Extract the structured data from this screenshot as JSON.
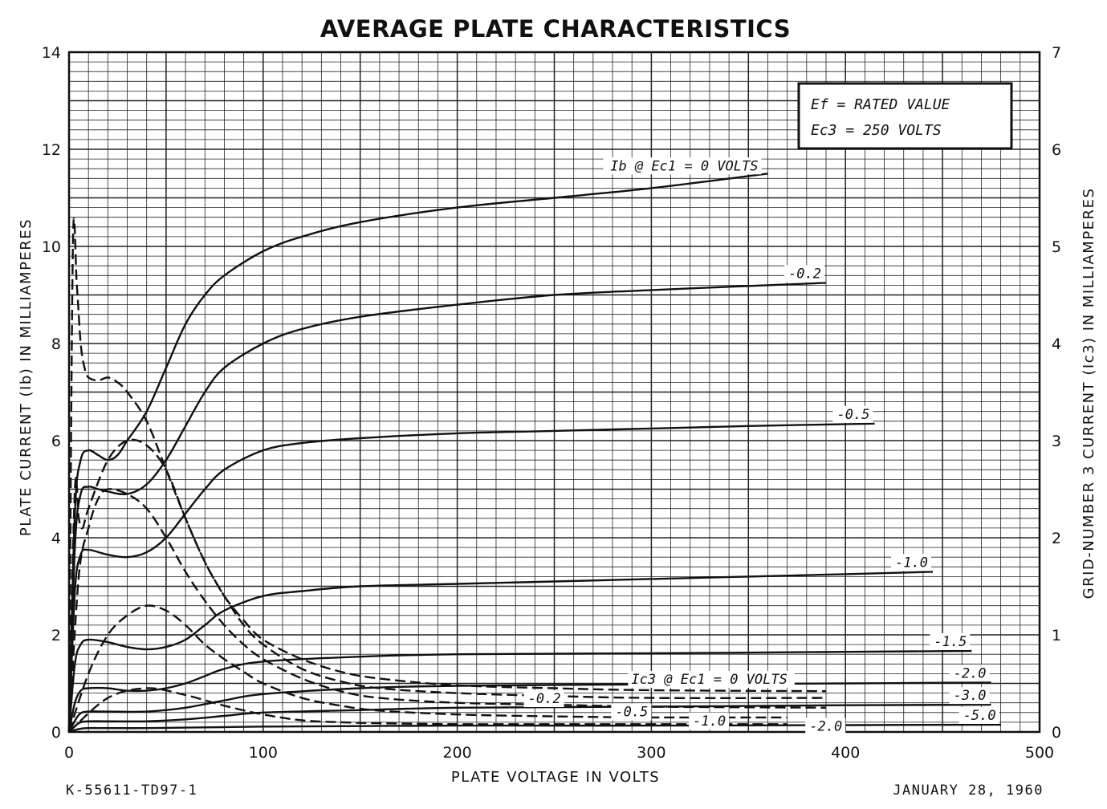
{
  "chart_data": {
    "type": "line",
    "title": "AVERAGE PLATE CHARACTERISTICS",
    "xlabel": "PLATE VOLTAGE IN VOLTS",
    "ylabel_left": "PLATE CURRENT (Ib) IN MILLIAMPERES",
    "ylabel_right": "GRID-NUMBER 3 CURRENT (Ic3) IN MILLIAMPERES",
    "xlim": [
      0,
      500
    ],
    "ylim_left": [
      0,
      14
    ],
    "ylim_right": [
      0,
      7
    ],
    "x_ticks": [
      "0",
      "100",
      "200",
      "300",
      "400",
      "500"
    ],
    "y_ticks_left": [
      "0",
      "2",
      "4",
      "6",
      "8",
      "10",
      "12",
      "14"
    ],
    "y_ticks_right": [
      "0",
      "1",
      "2",
      "3",
      "4",
      "5",
      "6",
      "7"
    ],
    "grid": true,
    "legend": "none",
    "conditions": [
      "Ef = RATED VALUE",
      "Ec3 = 250 VOLTS"
    ],
    "plate_series": [
      {
        "name": "Ib @ Ec1 = 0 VOLTS",
        "x": [
          0,
          3,
          6,
          10,
          15,
          20,
          25,
          30,
          40,
          50,
          60,
          70,
          80,
          100,
          120,
          150,
          200,
          250,
          300,
          360
        ],
        "y": [
          0,
          4.5,
          5.6,
          5.8,
          5.7,
          5.6,
          5.7,
          6.0,
          6.6,
          7.5,
          8.4,
          9.0,
          9.4,
          9.9,
          10.2,
          10.5,
          10.8,
          11.0,
          11.2,
          11.5
        ]
      },
      {
        "name": "-0.2",
        "x": [
          0,
          3,
          6,
          10,
          15,
          20,
          30,
          40,
          50,
          60,
          70,
          80,
          100,
          120,
          150,
          200,
          250,
          300,
          390
        ],
        "y": [
          0,
          3.8,
          4.9,
          5.05,
          5.0,
          4.95,
          4.9,
          5.1,
          5.6,
          6.3,
          7.0,
          7.5,
          8.0,
          8.3,
          8.55,
          8.8,
          9.0,
          9.1,
          9.25
        ]
      },
      {
        "name": "-0.5",
        "x": [
          0,
          3,
          6,
          10,
          20,
          30,
          40,
          50,
          60,
          70,
          80,
          100,
          120,
          150,
          200,
          250,
          300,
          350,
          415
        ],
        "y": [
          0,
          2.9,
          3.65,
          3.75,
          3.65,
          3.6,
          3.7,
          4.0,
          4.5,
          5.0,
          5.4,
          5.8,
          5.95,
          6.05,
          6.15,
          6.2,
          6.25,
          6.3,
          6.35
        ]
      },
      {
        "name": "-1.0",
        "x": [
          0,
          3,
          6,
          10,
          20,
          30,
          40,
          50,
          60,
          70,
          80,
          100,
          120,
          150,
          200,
          250,
          300,
          350,
          400,
          445
        ],
        "y": [
          0,
          1.4,
          1.8,
          1.9,
          1.85,
          1.75,
          1.7,
          1.75,
          1.9,
          2.2,
          2.5,
          2.8,
          2.9,
          3.0,
          3.05,
          3.1,
          3.15,
          3.2,
          3.25,
          3.3
        ]
      },
      {
        "name": "-1.5",
        "x": [
          0,
          3,
          6,
          10,
          20,
          30,
          40,
          50,
          60,
          70,
          80,
          100,
          150,
          200,
          300,
          400,
          465
        ],
        "y": [
          0,
          0.6,
          0.85,
          0.9,
          0.9,
          0.85,
          0.85,
          0.9,
          1.0,
          1.15,
          1.3,
          1.45,
          1.55,
          1.6,
          1.62,
          1.65,
          1.67
        ]
      },
      {
        "name": "-2.0",
        "x": [
          0,
          5,
          10,
          20,
          40,
          60,
          80,
          100,
          150,
          200,
          300,
          400,
          475
        ],
        "y": [
          0,
          0.35,
          0.42,
          0.42,
          0.42,
          0.5,
          0.65,
          0.78,
          0.9,
          0.95,
          0.98,
          1.0,
          1.02
        ]
      },
      {
        "name": "-3.0",
        "x": [
          0,
          5,
          10,
          20,
          40,
          60,
          80,
          100,
          150,
          200,
          300,
          400,
          475
        ],
        "y": [
          0,
          0.18,
          0.22,
          0.22,
          0.22,
          0.26,
          0.33,
          0.4,
          0.45,
          0.5,
          0.52,
          0.55,
          0.56
        ]
      },
      {
        "name": "-5.0",
        "x": [
          0,
          5,
          10,
          20,
          40,
          60,
          80,
          100,
          150,
          200,
          300,
          400,
          480
        ],
        "y": [
          0,
          0.06,
          0.08,
          0.08,
          0.08,
          0.09,
          0.1,
          0.11,
          0.12,
          0.13,
          0.13,
          0.14,
          0.15
        ]
      }
    ],
    "grid3_series": [
      {
        "name": "Ic3 @ Ec1 = 0 VOLTS",
        "x": [
          0,
          2,
          4,
          6,
          8,
          10,
          15,
          20,
          25,
          30,
          40,
          50,
          60,
          70,
          80,
          90,
          100,
          120,
          140,
          160,
          200,
          250,
          300,
          390
        ],
        "y": [
          0,
          5.0,
          4.6,
          4.0,
          3.75,
          3.65,
          3.62,
          3.65,
          3.6,
          3.5,
          3.2,
          2.7,
          2.2,
          1.75,
          1.4,
          1.15,
          0.95,
          0.75,
          0.62,
          0.55,
          0.48,
          0.45,
          0.43,
          0.42
        ]
      },
      {
        "name": "-0.2",
        "x": [
          0,
          3,
          5,
          7,
          10,
          20,
          30,
          40,
          50,
          60,
          70,
          80,
          90,
          100,
          120,
          140,
          160,
          200,
          250,
          300,
          390
        ],
        "y": [
          0,
          2.5,
          2.2,
          2.1,
          2.3,
          2.8,
          3.0,
          2.95,
          2.7,
          2.2,
          1.75,
          1.4,
          1.1,
          0.9,
          0.65,
          0.52,
          0.45,
          0.4,
          0.37,
          0.35,
          0.35
        ]
      },
      {
        "name": "-0.5",
        "x": [
          0,
          5,
          10,
          15,
          20,
          30,
          40,
          50,
          60,
          70,
          80,
          90,
          100,
          120,
          140,
          160,
          200,
          250,
          300,
          390
        ],
        "y": [
          0,
          1.6,
          2.1,
          2.4,
          2.5,
          2.45,
          2.3,
          2.0,
          1.65,
          1.35,
          1.1,
          0.9,
          0.75,
          0.55,
          0.42,
          0.35,
          0.3,
          0.28,
          0.26,
          0.25
        ]
      },
      {
        "name": "-1.0",
        "x": [
          0,
          10,
          20,
          30,
          40,
          50,
          60,
          70,
          80,
          90,
          100,
          120,
          140,
          160,
          200,
          250,
          300,
          370
        ],
        "y": [
          0,
          0.6,
          1.0,
          1.2,
          1.3,
          1.25,
          1.1,
          0.9,
          0.75,
          0.62,
          0.5,
          0.35,
          0.27,
          0.22,
          0.18,
          0.16,
          0.15,
          0.15
        ]
      },
      {
        "name": "-2.0",
        "x": [
          0,
          20,
          40,
          60,
          80,
          100,
          120,
          140,
          160,
          200,
          250,
          300,
          370
        ],
        "y": [
          0,
          0.35,
          0.45,
          0.38,
          0.27,
          0.18,
          0.12,
          0.1,
          0.09,
          0.08,
          0.08,
          0.08,
          0.08
        ]
      }
    ],
    "curve_labels": {
      "plate": [
        "Ib @ Ec1 = 0 VOLTS",
        "-0.2",
        "-0.5",
        "-1.0",
        "-1.5",
        "-2.0",
        "-3.0",
        "-5.0"
      ],
      "grid3": [
        "Ic3 @ Ec1 = 0 VOLTS",
        "-0.2",
        "-0.5",
        "-1.0",
        "-2.0"
      ]
    }
  },
  "footer": {
    "code": "K-55611-TD97-1",
    "date": "JANUARY 28, 1960"
  }
}
